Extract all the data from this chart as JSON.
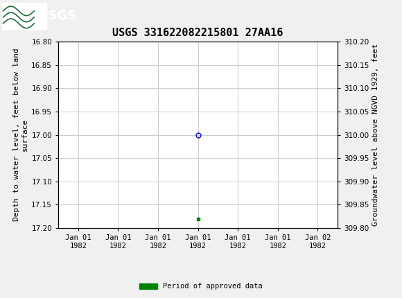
{
  "title": "USGS 331622082215801 27AA16",
  "ylabel_left": "Depth to water level, feet below land\nsurface",
  "ylabel_right": "Groundwater level above NGVD 1929, feet",
  "ylim_left": [
    17.2,
    16.8
  ],
  "ylim_right": [
    309.8,
    310.2
  ],
  "yticks_left": [
    16.8,
    16.85,
    16.9,
    16.95,
    17.0,
    17.05,
    17.1,
    17.15,
    17.2
  ],
  "yticks_right": [
    310.2,
    310.15,
    310.1,
    310.05,
    310.0,
    309.95,
    309.9,
    309.85,
    309.8
  ],
  "data_point_x": 3,
  "data_point_depth": 17.0,
  "green_marker_x": 3,
  "green_marker_depth": 17.18,
  "circle_color": "#0000cc",
  "green_color": "#008000",
  "background_color": "#f0f0f0",
  "plot_bg_color": "#ffffff",
  "grid_color": "#cccccc",
  "header_color": "#1a6b35",
  "title_fontsize": 11,
  "tick_fontsize": 7.5,
  "axis_label_fontsize": 8,
  "legend_label": "Period of approved data",
  "font_family": "monospace",
  "x_tick_labels": [
    "Jan 01\n1982",
    "Jan 01\n1982",
    "Jan 01\n1982",
    "Jan 01\n1982",
    "Jan 01\n1982",
    "Jan 01\n1982",
    "Jan 02\n1982"
  ],
  "x_tick_positions": [
    0,
    1,
    2,
    3,
    4,
    5,
    6
  ],
  "xlim": [
    -0.5,
    6.5
  ]
}
